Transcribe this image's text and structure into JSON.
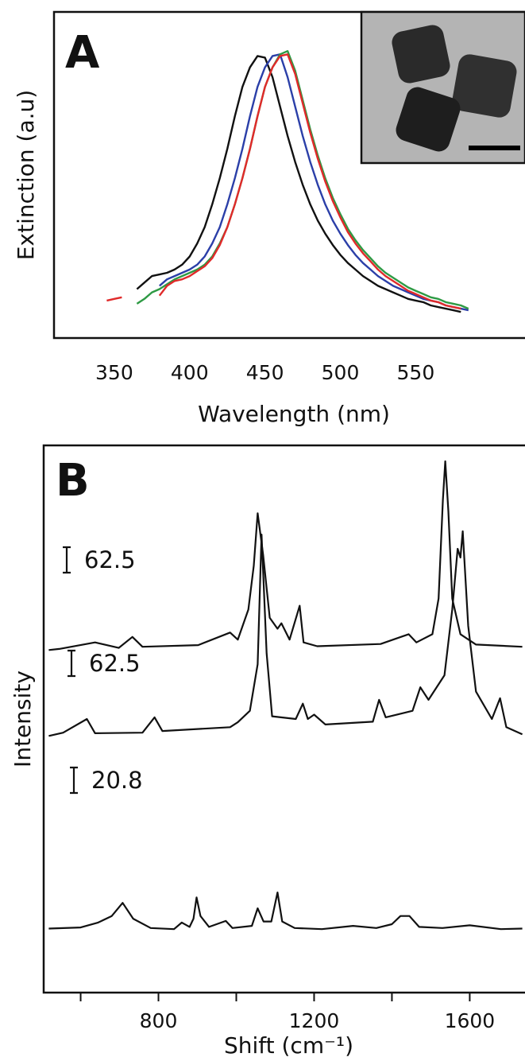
{
  "chart_data": [
    {
      "type": "line",
      "panel_label": "A",
      "xlabel": "Wavelength (nm)",
      "ylabel": "Extinction (a.u)",
      "xlim": [
        310,
        622
      ],
      "ylim": [
        0,
        1
      ],
      "xticks": [
        350,
        400,
        450,
        500,
        550
      ],
      "x": [
        345,
        350,
        355,
        360,
        365,
        370,
        375,
        380,
        385,
        390,
        395,
        400,
        405,
        410,
        415,
        420,
        425,
        430,
        435,
        440,
        445,
        450,
        455,
        460,
        465,
        470,
        475,
        480,
        485,
        490,
        495,
        500,
        505,
        510,
        515,
        520,
        525,
        530,
        535,
        540,
        545,
        550,
        555,
        560,
        565,
        570,
        575,
        580,
        585,
        590
      ],
      "series": [
        {
          "color": "#111111",
          "values": [
            null,
            null,
            null,
            null,
            0.15,
            0.17,
            0.19,
            0.195,
            0.2,
            0.21,
            0.225,
            0.25,
            0.29,
            0.34,
            0.41,
            0.49,
            0.58,
            0.68,
            0.77,
            0.83,
            0.865,
            0.86,
            0.8,
            0.71,
            0.62,
            0.54,
            0.47,
            0.41,
            0.36,
            0.32,
            0.285,
            0.255,
            0.23,
            0.21,
            0.19,
            0.175,
            0.16,
            0.15,
            0.14,
            0.13,
            0.12,
            0.115,
            0.11,
            0.1,
            0.095,
            0.09,
            0.085,
            0.08,
            null,
            null
          ]
        },
        {
          "color": "#2b3fa8",
          "values": [
            null,
            null,
            null,
            null,
            null,
            null,
            null,
            0.16,
            0.18,
            0.19,
            0.2,
            0.21,
            0.225,
            0.25,
            0.29,
            0.34,
            0.41,
            0.49,
            0.58,
            0.68,
            0.77,
            0.83,
            0.865,
            0.87,
            0.8,
            0.71,
            0.62,
            0.54,
            0.47,
            0.41,
            0.36,
            0.32,
            0.285,
            0.255,
            0.23,
            0.21,
            0.19,
            0.175,
            0.16,
            0.15,
            0.14,
            0.13,
            0.12,
            0.115,
            0.11,
            0.1,
            0.095,
            0.09,
            0.085,
            null
          ]
        },
        {
          "color": "#2e9a44",
          "values": [
            null,
            null,
            null,
            null,
            0.105,
            0.12,
            0.14,
            0.15,
            0.165,
            0.18,
            0.19,
            0.2,
            0.21,
            0.225,
            0.25,
            0.29,
            0.34,
            0.41,
            0.49,
            0.58,
            0.68,
            0.77,
            0.83,
            0.87,
            0.88,
            0.82,
            0.73,
            0.64,
            0.56,
            0.49,
            0.43,
            0.38,
            0.335,
            0.3,
            0.27,
            0.245,
            0.22,
            0.2,
            0.185,
            0.17,
            0.155,
            0.145,
            0.135,
            0.125,
            0.12,
            0.11,
            0.105,
            0.1,
            0.09,
            null
          ]
        },
        {
          "color": "#e02a2a",
          "values": [
            0.115,
            0.12,
            0.125,
            null,
            null,
            null,
            null,
            0.13,
            0.16,
            0.175,
            0.18,
            0.19,
            0.205,
            0.22,
            0.245,
            0.285,
            0.34,
            0.41,
            0.49,
            0.58,
            0.68,
            0.77,
            0.83,
            0.865,
            0.87,
            0.81,
            0.72,
            0.63,
            0.55,
            0.48,
            0.42,
            0.37,
            0.325,
            0.29,
            0.26,
            0.235,
            0.21,
            0.19,
            0.175,
            0.16,
            0.145,
            0.135,
            0.125,
            0.115,
            0.11,
            0.1,
            0.095,
            0.09,
            null,
            null
          ]
        }
      ]
    },
    {
      "type": "line",
      "panel_label": "B",
      "xlabel": "Shift (cm⁻¹)",
      "ylabel": "Intensity",
      "xlim": [
        505,
        1740
      ],
      "ylim": [
        0,
        100
      ],
      "xticks": [
        800,
        1200,
        1600
      ],
      "x_minor_ticks": [
        600,
        1000,
        1400
      ],
      "scale_bars": [
        62.5,
        62.5,
        20.8
      ],
      "series": [
        {
          "color": "#111111",
          "x": [
            518,
            545,
            637,
            698,
            733,
            759,
            902,
            984,
            1004,
            1031,
            1045,
            1055,
            1069,
            1086,
            1106,
            1116,
            1137,
            1163,
            1173,
            1208,
            1371,
            1443,
            1463,
            1504,
            1520,
            1531,
            1537,
            1545,
            1555,
            1576,
            1616,
            1735
          ],
          "values": [
            62.6,
            62.8,
            64.0,
            63.0,
            65.0,
            63.2,
            63.5,
            65.8,
            64.5,
            70.0,
            78.0,
            87.6,
            80.0,
            68.5,
            66.5,
            67.5,
            64.5,
            70.7,
            64.0,
            63.3,
            63.7,
            65.5,
            64.0,
            65.5,
            72.0,
            90.0,
            97.1,
            88.0,
            72.0,
            65.5,
            63.6,
            63.2
          ]
        },
        {
          "color": "#111111",
          "x": [
            518,
            555,
            616,
            637,
            759,
            790,
            810,
            984,
            1004,
            1035,
            1055,
            1065,
            1078,
            1092,
            1153,
            1171,
            1184,
            1200,
            1229,
            1351,
            1367,
            1384,
            1453,
            1473,
            1494,
            1535,
            1555,
            1569,
            1576,
            1582,
            1596,
            1616,
            1657,
            1678,
            1694,
            1735
          ],
          "values": [
            46.9,
            47.5,
            50.0,
            47.4,
            47.5,
            50.3,
            47.8,
            48.5,
            49.4,
            51.5,
            60.0,
            83.7,
            62.0,
            50.5,
            50.0,
            52.8,
            50.0,
            50.8,
            49.0,
            49.5,
            53.5,
            50.3,
            51.5,
            55.8,
            53.5,
            58.0,
            70.0,
            81.1,
            79.5,
            84.3,
            67.0,
            55.0,
            50.0,
            53.8,
            48.5,
            47.2
          ]
        },
        {
          "color": "#111111",
          "x": [
            518,
            600,
            645,
            680,
            708,
            735,
            780,
            840,
            860,
            880,
            890,
            898,
            908,
            930,
            973,
            990,
            1040,
            1055,
            1070,
            1090,
            1106,
            1118,
            1150,
            1220,
            1300,
            1360,
            1400,
            1422,
            1445,
            1470,
            1530,
            1600,
            1680,
            1735
          ],
          "values": [
            11.7,
            11.9,
            12.8,
            14.0,
            16.4,
            13.5,
            11.8,
            11.6,
            12.8,
            12.0,
            13.5,
            17.4,
            14.0,
            12.0,
            13.1,
            11.8,
            12.2,
            15.4,
            13.0,
            13.0,
            18.3,
            13.0,
            11.8,
            11.6,
            12.2,
            11.8,
            12.5,
            14.0,
            14.0,
            12.0,
            11.8,
            12.3,
            11.6,
            11.7
          ]
        }
      ]
    }
  ]
}
